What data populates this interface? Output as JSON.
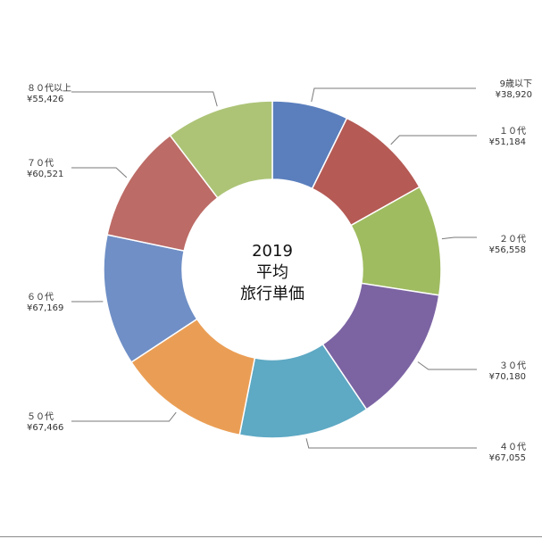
{
  "chart_data": {
    "type": "pie",
    "style": "donut",
    "center_title": [
      "2019",
      "平均",
      "旅行単価"
    ],
    "categories": [
      "9歳以下",
      "１０代",
      "２０代",
      "３０代",
      "４０代",
      "５０代",
      "６０代",
      "７０代",
      "８０代以上"
    ],
    "values": [
      38920,
      51184,
      56558,
      70180,
      67055,
      67466,
      67169,
      60521,
      55426
    ],
    "value_labels": [
      "¥38,920",
      "¥51,184",
      "¥56,558",
      "¥70,180",
      "¥67,055",
      "¥67,466",
      "¥67,169",
      "¥60,521",
      "¥55,426"
    ],
    "colors": [
      "#5b7fbd",
      "#b55a55",
      "#9fbc60",
      "#7c64a3",
      "#5ea9c4",
      "#ea9e55",
      "#6f8fc6",
      "#bc6b66",
      "#adc477"
    ],
    "start_angle_deg": 0,
    "direction": "clockwise",
    "legend": "none"
  }
}
